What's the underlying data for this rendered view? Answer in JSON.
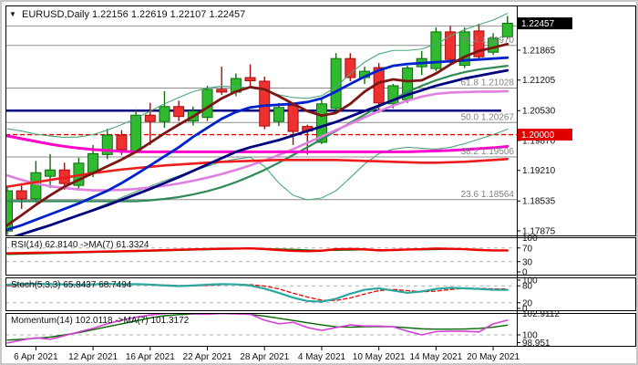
{
  "header": {
    "title": "EURUSD,Daily  1.22156 1.22619 1.22107 1.22457",
    "arrow": "▼"
  },
  "colors": {
    "bull_fill": "#2fba2f",
    "bull_stroke": "#0d6e0d",
    "bear_fill": "#ef3030",
    "bear_stroke": "#a50d0d",
    "fib_line": "#8c8c8c",
    "fib_text": "#808080",
    "resistance_gray": "#9a9a9a",
    "support_navy": "#000080",
    "price_line_red": "#e00000",
    "badge_current_bg": "#000000",
    "badge_level_bg": "#e00000",
    "badge_text": "#ffffff",
    "axis_text": "#111111",
    "ma_maroon": "#7d1515",
    "ma_blue": "#0022cc",
    "ma_navy": "#000080",
    "ma_magenta": "#ff00cc",
    "ma_plum": "#df7fdf",
    "ma_red": "#ee1c1c",
    "ma_dkgreen": "#2e8b57",
    "band_green": "#4aa878",
    "rsi_main": "#ee0000",
    "rsi_ma": "#007700",
    "stoch_k": "#2aa8a0",
    "stoch_d": "#ee0000",
    "mom_main": "#d63fd6",
    "mom_ma": "#006600",
    "dashed_level": "#b4b4b4"
  },
  "chart_data": {
    "type": "candlestick",
    "symbol": "EURUSD",
    "timeframe": "Daily",
    "title": "EURUSD,Daily 1.22156 1.22619 1.22107 1.22457",
    "current_ohlc": {
      "open": 1.22156,
      "high": 1.22619,
      "low": 1.22107,
      "close": 1.22457
    },
    "price_axis": {
      "labels": [
        "1.22525",
        "1.21865",
        "1.21205",
        "1.20530",
        "1.19870",
        "1.19210",
        "1.18535",
        "1.17875"
      ],
      "current_badge": "1.22457",
      "level_badge": "1.20000",
      "range_top": 1.22853,
      "range_bottom": 1.17755
    },
    "x_axis": {
      "tick_labels": [
        {
          "idx": 2,
          "label": "6 Apr 2021"
        },
        {
          "idx": 6,
          "label": "12 Apr 2021"
        },
        {
          "idx": 10,
          "label": "16 Apr 2021"
        },
        {
          "idx": 14,
          "label": "22 Apr 2021"
        },
        {
          "idx": 18,
          "label": "28 Apr 2021"
        },
        {
          "idx": 22,
          "label": "4 May 2021"
        },
        {
          "idx": 26,
          "label": "10 May 2021"
        },
        {
          "idx": 30,
          "label": "14 May 2021"
        },
        {
          "idx": 34,
          "label": "20 May 2021"
        }
      ]
    },
    "fib_levels": [
      {
        "pct": "76.4",
        "price": 1.2197,
        "label": "76.4 1.21970"
      },
      {
        "pct": "61.8",
        "price": 1.21028,
        "label": "61.8 1.21028"
      },
      {
        "pct": "50.0",
        "price": 1.20267,
        "label": "50.0 1.20267"
      },
      {
        "pct": "38.2",
        "price": 1.19506,
        "label": "38.2 1.19506"
      },
      {
        "pct": "23.6",
        "price": 1.18564,
        "label": "23.6 1.18564"
      }
    ],
    "horizontal_lines": {
      "red_dashed_price_line": 1.2,
      "gray_resistance": 1.224,
      "navy_support": 1.2053
    },
    "candles": [
      [
        1.1787,
        1.1888,
        1.1778,
        1.1876
      ],
      [
        1.1876,
        1.1893,
        1.1836,
        1.1858
      ],
      [
        1.1858,
        1.1942,
        1.185,
        1.1916
      ],
      [
        1.1908,
        1.1957,
        1.1882,
        1.1922
      ],
      [
        1.1922,
        1.1938,
        1.1878,
        1.1892
      ],
      [
        1.1888,
        1.1949,
        1.1876,
        1.1937
      ],
      [
        1.1916,
        1.1977,
        1.1906,
        1.1958
      ],
      [
        1.1956,
        1.2013,
        1.1946,
        1.1999
      ],
      [
        1.1999,
        1.201,
        1.1955,
        1.1967
      ],
      [
        1.1963,
        1.2056,
        1.1959,
        1.2043
      ],
      [
        1.2043,
        1.207,
        1.1977,
        1.2029
      ],
      [
        1.2029,
        1.2096,
        1.2015,
        1.2062
      ],
      [
        1.2062,
        1.2075,
        1.203,
        1.204
      ],
      [
        1.203,
        1.2062,
        1.202,
        1.2052
      ],
      [
        1.2038,
        1.2108,
        1.203,
        1.21
      ],
      [
        1.21,
        1.215,
        1.2088,
        1.2094
      ],
      [
        1.2094,
        1.2135,
        1.2085,
        1.2124
      ],
      [
        1.2126,
        1.2155,
        1.2108,
        1.2119
      ],
      [
        1.2118,
        1.2128,
        1.2012,
        1.2019
      ],
      [
        1.2029,
        1.207,
        1.2019,
        1.206
      ],
      [
        1.2064,
        1.2068,
        1.1977,
        1.2007
      ],
      [
        1.2018,
        1.2022,
        1.1956,
        1.2008
      ],
      [
        1.1983,
        1.2078,
        1.1979,
        1.2068
      ],
      [
        1.2058,
        1.218,
        1.2052,
        1.2168
      ],
      [
        1.2168,
        1.218,
        1.2118,
        1.2126
      ],
      [
        1.2126,
        1.215,
        1.2112,
        1.214
      ],
      [
        1.2148,
        1.2158,
        1.2048,
        1.207
      ],
      [
        1.2068,
        1.2112,
        1.2058,
        1.2108
      ],
      [
        1.2077,
        1.2152,
        1.207,
        1.2147
      ],
      [
        1.215,
        1.2185,
        1.2132,
        1.2168
      ],
      [
        1.2146,
        1.2237,
        1.214,
        1.2227
      ],
      [
        1.2227,
        1.224,
        1.2158,
        1.2166
      ],
      [
        1.2153,
        1.2237,
        1.2147,
        1.2227
      ],
      [
        1.2229,
        1.2245,
        1.2164,
        1.2172
      ],
      [
        1.2182,
        1.2224,
        1.2176,
        1.2213
      ],
      [
        1.2216,
        1.2262,
        1.2211,
        1.2246
      ]
    ],
    "overlays": {
      "band_upper": [
        1.2013,
        1.2008,
        1.2001,
        1.1997,
        1.1994,
        1.1995,
        1.2,
        1.201,
        1.2022,
        1.2036,
        1.2052,
        1.2068,
        1.2082,
        1.2095,
        1.2103,
        1.2107,
        1.2106,
        1.2103,
        1.2098,
        1.2088,
        1.2082,
        1.208,
        1.2086,
        1.2105,
        1.2135,
        1.216,
        1.2178,
        1.2186,
        1.2186,
        1.2189,
        1.22,
        1.2218,
        1.2232,
        1.2243,
        1.2253,
        1.2268
      ],
      "band_lower": [
        1.177,
        1.1778,
        1.1788,
        1.1798,
        1.181,
        1.1822,
        1.1835,
        1.1848,
        1.1861,
        1.1874,
        1.1886,
        1.1898,
        1.1909,
        1.192,
        1.193,
        1.194,
        1.1946,
        1.195,
        1.193,
        1.1893,
        1.1866,
        1.1856,
        1.186,
        1.1876,
        1.1905,
        1.1935,
        1.1958,
        1.1968,
        1.1972,
        1.197,
        1.1968,
        1.1972,
        1.198,
        1.199,
        1.2,
        1.2012
      ],
      "ma_dkgreen": [
        1.1853,
        1.1853,
        1.1853,
        1.1853,
        1.1853,
        1.1853,
        1.1853,
        1.1853,
        1.1853,
        1.1853,
        1.1855,
        1.1858,
        1.1862,
        1.1868,
        1.1875,
        1.1884,
        1.1895,
        1.1908,
        1.1922,
        1.1938,
        1.1955,
        1.1972,
        1.199,
        1.2008,
        1.2026,
        1.2044,
        1.2062,
        1.2078,
        1.2094,
        1.2108,
        1.212,
        1.213,
        1.2138,
        1.2144,
        1.2148,
        1.2152
      ],
      "ma_plum": [
        1.191,
        1.19,
        1.1892,
        1.1886,
        1.1882,
        1.1879,
        1.1877,
        1.1877,
        1.1878,
        1.188,
        1.1883,
        1.1887,
        1.1892,
        1.1898,
        1.1905,
        1.1913,
        1.1922,
        1.1932,
        1.1943,
        1.1955,
        1.1968,
        1.1982,
        1.1996,
        1.201,
        1.2024,
        1.2038,
        1.2052,
        1.2064,
        1.2075,
        1.2084,
        1.209,
        1.2093,
        1.2094,
        1.2095,
        1.2095,
        1.2096
      ],
      "ma_red": [
        1.1885,
        1.189,
        1.1895,
        1.19,
        1.1905,
        1.191,
        1.1915,
        1.1919,
        1.1923,
        1.1926,
        1.1929,
        1.1932,
        1.1934,
        1.1936,
        1.1938,
        1.194,
        1.1941,
        1.1942,
        1.1943,
        1.1944,
        1.1944,
        1.1944,
        1.1944,
        1.1944,
        1.1943,
        1.1942,
        1.1941,
        1.194,
        1.1939,
        1.1938,
        1.1938,
        1.1939,
        1.194,
        1.1942,
        1.1944,
        1.1946
      ],
      "ma_magenta": [
        1.1997,
        1.1991,
        1.1985,
        1.1979,
        1.1974,
        1.197,
        1.1967,
        1.1965,
        1.1963,
        1.1962,
        1.1962,
        1.1962,
        1.1962,
        1.1962,
        1.1962,
        1.1962,
        1.1962,
        1.1962,
        1.1962,
        1.1962,
        1.1962,
        1.1962,
        1.1962,
        1.1962,
        1.1962,
        1.1962,
        1.1962,
        1.1962,
        1.1962,
        1.1963,
        1.1964,
        1.1965,
        1.1967,
        1.1969,
        1.1971,
        1.1974
      ],
      "ma_navy": [
        1.177,
        1.178,
        1.179,
        1.18,
        1.1811,
        1.1822,
        1.1833,
        1.1844,
        1.1856,
        1.1868,
        1.188,
        1.1893,
        1.1906,
        1.192,
        1.1934,
        1.1948,
        1.1962,
        1.1972,
        1.198,
        1.1988,
        1.1998,
        1.2008,
        1.2018,
        1.2028,
        1.204,
        1.2052,
        1.2064,
        1.2076,
        1.2088,
        1.2098,
        1.2108,
        1.2116,
        1.2124,
        1.213,
        1.2136,
        1.2142
      ],
      "ma_blue": [
        1.179,
        1.18,
        1.1812,
        1.1824,
        1.1836,
        1.1848,
        1.1862,
        1.1876,
        1.1893,
        1.1912,
        1.1932,
        1.1952,
        1.1972,
        1.1995,
        1.2015,
        1.2035,
        1.205,
        1.206,
        1.2064,
        1.2066,
        1.2068,
        1.2072,
        1.208,
        1.2095,
        1.2112,
        1.2128,
        1.2142,
        1.2152,
        1.2156,
        1.2158,
        1.216,
        1.2162,
        1.2164,
        1.2166,
        1.2168,
        1.217
      ],
      "ma_maroon": [
        1.18,
        1.1822,
        1.1845,
        1.1866,
        1.1885,
        1.19,
        1.1915,
        1.193,
        1.1945,
        1.1962,
        1.1982,
        1.2003,
        1.2022,
        1.204,
        1.206,
        1.208,
        1.2095,
        1.2105,
        1.21,
        1.2085,
        1.2068,
        1.2052,
        1.2042,
        1.2048,
        1.2068,
        1.2095,
        1.2115,
        1.2122,
        1.2118,
        1.212,
        1.2135,
        1.2155,
        1.2172,
        1.2185,
        1.2192,
        1.22
      ]
    },
    "indicators": {
      "rsi": {
        "label": "RSI(14) 62.8140  ->MA(7) 61.3324",
        "value": 62.814,
        "ma_value": 61.3324,
        "axis_labels": [
          {
            "t": "100",
            "v": 100
          },
          {
            "t": "70",
            "v": 70
          },
          {
            "t": "30",
            "v": 30
          },
          {
            "t": "0",
            "v": 0
          }
        ],
        "dashed_levels": [
          70,
          30
        ],
        "main": [
          54.5,
          55.2,
          56.0,
          56.6,
          57.0,
          57.8,
          58.8,
          59.8,
          60.5,
          61.5,
          62.5,
          63.8,
          64.8,
          65.8,
          66.8,
          67.8,
          68.3,
          68.8,
          67.0,
          64.0,
          61.5,
          60.5,
          62.0,
          66.5,
          67.0,
          66.0,
          63.0,
          64.0,
          65.5,
          66.5,
          68.5,
          67.5,
          66.5,
          64.0,
          62.9,
          62.8
        ],
        "ma": [
          51.0,
          52.0,
          53.0,
          54.0,
          55.0,
          55.8,
          56.8,
          57.8,
          58.7,
          59.6,
          60.6,
          61.7,
          62.8,
          63.9,
          64.9,
          65.9,
          66.8,
          67.5,
          67.7,
          67.2,
          66.0,
          64.4,
          63.2,
          63.1,
          63.7,
          64.6,
          64.9,
          64.7,
          64.4,
          64.6,
          65.4,
          66.1,
          66.5,
          66.0,
          63.5,
          61.3
        ]
      },
      "stoch": {
        "label": "Stoch(5,3,3) 65.8437 68.7494",
        "k_value": 65.8437,
        "d_value": 68.7494,
        "axis_labels": [
          {
            "t": "100",
            "v": 100
          },
          {
            "t": "80",
            "v": 80
          },
          {
            "t": "20",
            "v": 20
          },
          {
            "t": "0",
            "v": 0
          }
        ],
        "dashed_levels": [
          80,
          20
        ],
        "k": [
          84,
          86,
          87,
          86,
          85,
          84,
          85,
          87,
          85,
          86,
          84,
          81,
          79,
          81,
          84,
          86,
          85,
          81,
          70,
          55,
          38,
          26,
          24,
          34,
          52,
          66,
          71,
          63,
          55,
          60,
          69,
          73,
          71,
          69,
          66,
          65.8
        ],
        "d": [
          80,
          83,
          85,
          86,
          86,
          85,
          85,
          85,
          86,
          85,
          85,
          83,
          81,
          80,
          81,
          84,
          85,
          84,
          79,
          69,
          54,
          40,
          29,
          28,
          37,
          51,
          63,
          67,
          63,
          59,
          61,
          67,
          71,
          71,
          69,
          68.7
        ]
      },
      "momentum": {
        "label": "Momentum(14) 102.0118  ->MA(7) 101.3172",
        "value": 102.0118,
        "ma_value": 101.3172,
        "axis_labels": [
          {
            "t": "102.9112",
            "v": 102.9112
          },
          {
            "t": "100",
            "v": 100
          },
          {
            "t": "98.951",
            "v": 98.951
          }
        ],
        "dashed_levels": [
          100
        ],
        "main": [
          98.9,
          99.3,
          99.6,
          99.4,
          99.9,
          100.4,
          100.9,
          101.5,
          102.0,
          102.4,
          102.7,
          102.9,
          103.0,
          102.85,
          102.8,
          102.9,
          102.85,
          102.8,
          102.0,
          101.5,
          101.7,
          101.0,
          100.6,
          101.0,
          101.35,
          101.2,
          101.2,
          101.1,
          100.5,
          100.0,
          100.45,
          100.5,
          100.5,
          100.4,
          101.5,
          102.0
        ],
        "ma": [
          99.3,
          99.4,
          99.55,
          99.7,
          100.0,
          100.3,
          100.7,
          101.1,
          101.5,
          101.9,
          102.3,
          102.6,
          102.75,
          102.82,
          102.86,
          102.87,
          102.85,
          102.78,
          102.55,
          102.25,
          101.95,
          101.65,
          101.35,
          101.1,
          101.05,
          101.1,
          101.12,
          101.1,
          100.97,
          100.82,
          100.78,
          100.78,
          100.8,
          100.88,
          101.05,
          101.32
        ]
      }
    }
  }
}
